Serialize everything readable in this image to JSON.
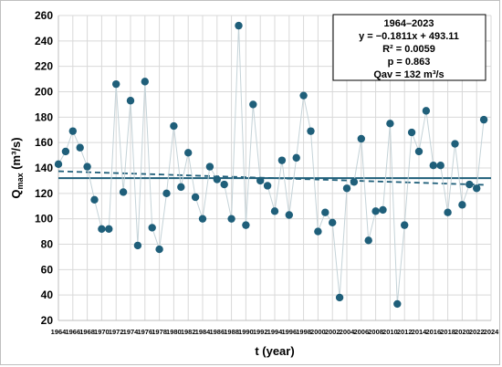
{
  "chart_data": {
    "type": "scatter",
    "xlabel": "t (year)",
    "ylabel": {
      "main": "Q",
      "sub": "max",
      "unit": " (m³/s)"
    },
    "xlim": [
      1964,
      2024
    ],
    "ylim": [
      20,
      260
    ],
    "xticks": [
      1964,
      1966,
      1968,
      1970,
      1972,
      1974,
      1976,
      1978,
      1980,
      1982,
      1984,
      1986,
      1988,
      1990,
      1992,
      1994,
      1996,
      1998,
      2000,
      2002,
      2004,
      2006,
      2008,
      2010,
      2012,
      2014,
      2016,
      2018,
      2020,
      2022,
      2024
    ],
    "yticks": [
      20,
      40,
      60,
      80,
      100,
      120,
      140,
      160,
      180,
      200,
      220,
      240,
      260
    ],
    "grid": true,
    "series": [
      {
        "x": [
          1964,
          1965,
          1966,
          1967,
          1968,
          1969,
          1970,
          1971,
          1972,
          1973,
          1974,
          1975,
          1976,
          1977,
          1978,
          1979,
          1980,
          1981,
          1982,
          1983,
          1984,
          1985,
          1986,
          1987,
          1988,
          1989,
          1990,
          1991,
          1992,
          1993,
          1994,
          1995,
          1996,
          1997,
          1998,
          1999,
          2000,
          2001,
          2002,
          2003,
          2004,
          2005,
          2006,
          2007,
          2008,
          2009,
          2010,
          2011,
          2012,
          2013,
          2014,
          2015,
          2016,
          2017,
          2018,
          2019,
          2020,
          2021,
          2022,
          2023
        ],
        "values": [
          143,
          153,
          169,
          156,
          141,
          115,
          92,
          92,
          206,
          121,
          193,
          79,
          208,
          93,
          76,
          120,
          173,
          125,
          152,
          117,
          100,
          141,
          131,
          127,
          100,
          252,
          95,
          190,
          130,
          126,
          106,
          146,
          103,
          148,
          197,
          169,
          90,
          105,
          97,
          38,
          124,
          129,
          163,
          83,
          106,
          107,
          175,
          33,
          95,
          168,
          153,
          185,
          142,
          142,
          105,
          159,
          111,
          127,
          124,
          178
        ],
        "color": "#1f5f7a",
        "line_color": "#c5d3d8"
      }
    ],
    "trend": {
      "slope": -0.1811,
      "intercept": 493.11,
      "style": "dashed",
      "color": "#1f5f7a"
    },
    "mean": {
      "value": 132,
      "color": "#1f5f7a"
    },
    "annotation": {
      "lines": [
        "1964–2023",
        "y = −0.1811x + 493.11",
        "R² = 0.0059",
        "p = 0.863",
        "Qav = 132 m³/s"
      ],
      "placement": "top-right"
    }
  }
}
